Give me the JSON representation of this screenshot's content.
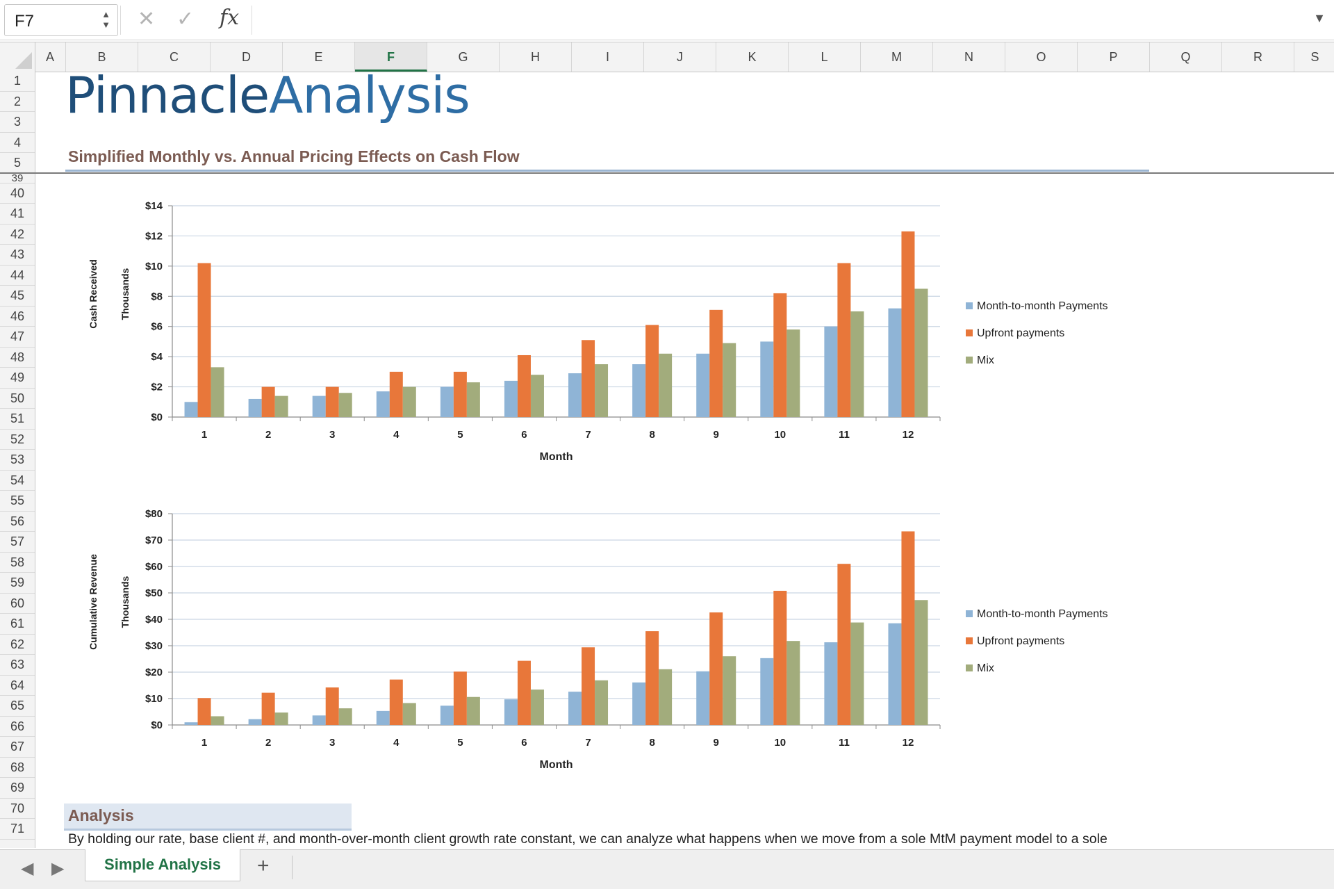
{
  "formula_bar": {
    "name_box": "F7",
    "cancel_icon": "✕",
    "enter_icon": "✓",
    "fx_label": "fx",
    "formula": ""
  },
  "columns": [
    "A",
    "B",
    "C",
    "D",
    "E",
    "F",
    "G",
    "H",
    "I",
    "J",
    "K",
    "L",
    "M",
    "N",
    "O",
    "P",
    "Q",
    "R",
    "S"
  ],
  "active_column": "F",
  "rows": [
    "1",
    "2",
    "3",
    "4",
    "5",
    "39",
    "40",
    "41",
    "42",
    "43",
    "44",
    "45",
    "46",
    "47",
    "48",
    "49",
    "50",
    "51",
    "52",
    "53",
    "54",
    "55",
    "56",
    "57",
    "58",
    "59",
    "60",
    "61",
    "62",
    "63",
    "64",
    "65",
    "66",
    "67",
    "68",
    "69",
    "70",
    "71"
  ],
  "logo": {
    "part1": "Pinnacle",
    "part2": "Analysis"
  },
  "section_title": "Simplified Monthly vs. Annual Pricing Effects on Cash Flow",
  "analysis": {
    "title": "Analysis",
    "text": "By holding our rate, base client #, and month-over-month client growth rate constant, we can analyze what happens when we move from a sole MtM payment model to a sole"
  },
  "colors": {
    "mtm": "#8fb4d6",
    "upfront": "#e8773a",
    "mix": "#a2ac7c",
    "excel_green": "#217346"
  },
  "chart_data": [
    {
      "type": "bar",
      "ylabel": "Cash Received",
      "ylabel2": "Thousands",
      "xlabel": "Month",
      "categories": [
        "1",
        "2",
        "3",
        "4",
        "5",
        "6",
        "7",
        "8",
        "9",
        "10",
        "11",
        "12"
      ],
      "yticks": [
        "$0",
        "$2",
        "$4",
        "$6",
        "$8",
        "$10",
        "$12",
        "$14"
      ],
      "ylim": [
        0,
        14
      ],
      "legend_position": "right",
      "series": [
        {
          "name": "Month-to-month Payments",
          "values": [
            1.0,
            1.2,
            1.4,
            1.7,
            2.0,
            2.4,
            2.9,
            3.5,
            4.2,
            5.0,
            6.0,
            7.2
          ]
        },
        {
          "name": "Upfront payments",
          "values": [
            10.2,
            2.0,
            2.0,
            3.0,
            3.0,
            4.1,
            5.1,
            6.1,
            7.1,
            8.2,
            10.2,
            12.3
          ]
        },
        {
          "name": "Mix",
          "values": [
            3.3,
            1.4,
            1.6,
            2.0,
            2.3,
            2.8,
            3.5,
            4.2,
            4.9,
            5.8,
            7.0,
            8.5
          ]
        }
      ]
    },
    {
      "type": "bar",
      "ylabel": "Cumulative Revenue",
      "ylabel2": "Thousands",
      "xlabel": "Month",
      "categories": [
        "1",
        "2",
        "3",
        "4",
        "5",
        "6",
        "7",
        "8",
        "9",
        "10",
        "11",
        "12"
      ],
      "yticks": [
        "$0",
        "$10",
        "$20",
        "$30",
        "$40",
        "$50",
        "$60",
        "$70",
        "$80"
      ],
      "ylim": [
        0,
        80
      ],
      "legend_position": "right",
      "series": [
        {
          "name": "Month-to-month Payments",
          "values": [
            1.0,
            2.2,
            3.6,
            5.3,
            7.3,
            9.7,
            12.6,
            16.1,
            20.3,
            25.3,
            31.3,
            38.5
          ]
        },
        {
          "name": "Upfront payments",
          "values": [
            10.2,
            12.2,
            14.2,
            17.2,
            20.2,
            24.3,
            29.4,
            35.5,
            42.6,
            50.8,
            61.0,
            73.3
          ]
        },
        {
          "name": "Mix",
          "values": [
            3.3,
            4.7,
            6.3,
            8.3,
            10.6,
            13.4,
            16.9,
            21.1,
            26.0,
            31.8,
            38.8,
            47.3
          ]
        }
      ]
    }
  ],
  "tabs": {
    "prev_icon": "◀",
    "next_icon": "▶",
    "active": "Simple Analysis",
    "add_icon": "+"
  }
}
